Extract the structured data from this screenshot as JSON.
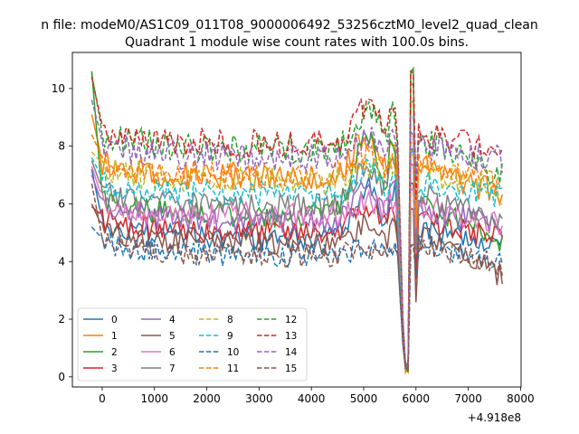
{
  "figure": {
    "suptitle": "n file: modeM0/AS1C09_011T08_9000006492_53256cztM0_level2_quad_clean",
    "title": "Quadrant 1 module wise count rates with 100.0s bins.",
    "offset_text": "+4.918e8"
  },
  "chart_data": {
    "type": "line",
    "title": "Quadrant 1 module wise count rates with 100.0s bins.",
    "xlabel": "",
    "ylabel": "",
    "x_offset": 491800000,
    "xlim": [
      -570,
      8010
    ],
    "ylim": [
      -0.35,
      11.25
    ],
    "xticks": [
      0,
      1000,
      2000,
      3000,
      4000,
      5000,
      6000,
      7000,
      8000
    ],
    "yticks": [
      0,
      2,
      4,
      6,
      8,
      10
    ],
    "x_range": [
      -200,
      7650
    ],
    "bin_width": 100,
    "dip": {
      "center": 5800,
      "min": 0.15
    },
    "spike": {
      "center": 5920
    },
    "legend": {
      "location": "lower-left",
      "columns": 4
    },
    "grid": false,
    "series": [
      {
        "name": "0",
        "color": "#1f77b4",
        "dashed": false,
        "start": 7.2,
        "level": 4.8,
        "end": 4.6,
        "peak": 8.0
      },
      {
        "name": "1",
        "color": "#ff7f0e",
        "dashed": false,
        "start": 9.1,
        "level": 6.9,
        "end": 6.3,
        "peak": 9.6
      },
      {
        "name": "2",
        "color": "#2ca02c",
        "dashed": false,
        "start": 10.6,
        "level": 5.6,
        "end": 4.7,
        "peak": 10.6
      },
      {
        "name": "3",
        "color": "#d62728",
        "dashed": false,
        "start": 5.9,
        "level": 5.0,
        "end": 4.8,
        "peak": 6.6
      },
      {
        "name": "4",
        "color": "#9467bd",
        "dashed": false,
        "start": 7.0,
        "level": 5.4,
        "end": 5.3,
        "peak": 7.4
      },
      {
        "name": "5",
        "color": "#8c564b",
        "dashed": false,
        "start": 6.0,
        "level": 4.6,
        "end": 3.5,
        "peak": 5.8
      },
      {
        "name": "6",
        "color": "#e377c2",
        "dashed": false,
        "start": 7.3,
        "level": 5.6,
        "end": 5.2,
        "peak": 6.5
      },
      {
        "name": "7",
        "color": "#7f7f7f",
        "dashed": false,
        "start": 7.5,
        "level": 5.9,
        "end": 5.4,
        "peak": 8.4
      },
      {
        "name": "8",
        "color": "#bcbd22",
        "dashed": true,
        "start": 7.8,
        "level": 6.8,
        "end": 6.4,
        "peak": 7.8
      },
      {
        "name": "9",
        "color": "#17becf",
        "dashed": true,
        "start": 7.6,
        "level": 6.3,
        "end": 6.2,
        "peak": 7.8
      },
      {
        "name": "10",
        "color": "#1f77b4",
        "dashed": true,
        "start": 5.2,
        "level": 4.2,
        "end": 4.0,
        "peak": 4.6
      },
      {
        "name": "11",
        "color": "#ff7f0e",
        "dashed": true,
        "start": 8.4,
        "level": 7.0,
        "end": 6.7,
        "peak": 8.2
      },
      {
        "name": "12",
        "color": "#2ca02c",
        "dashed": true,
        "start": 10.5,
        "level": 7.9,
        "end": 7.0,
        "peak": 10.2
      },
      {
        "name": "13",
        "color": "#d62728",
        "dashed": true,
        "start": 10.4,
        "level": 8.1,
        "end": 7.8,
        "peak": 10.5
      },
      {
        "name": "14",
        "color": "#9467bd",
        "dashed": true,
        "start": 9.6,
        "level": 7.6,
        "end": 7.5,
        "peak": 8.9
      },
      {
        "name": "15",
        "color": "#8c564b",
        "dashed": true,
        "start": 6.7,
        "level": 4.2,
        "end": 3.9,
        "peak": 4.6
      }
    ]
  }
}
